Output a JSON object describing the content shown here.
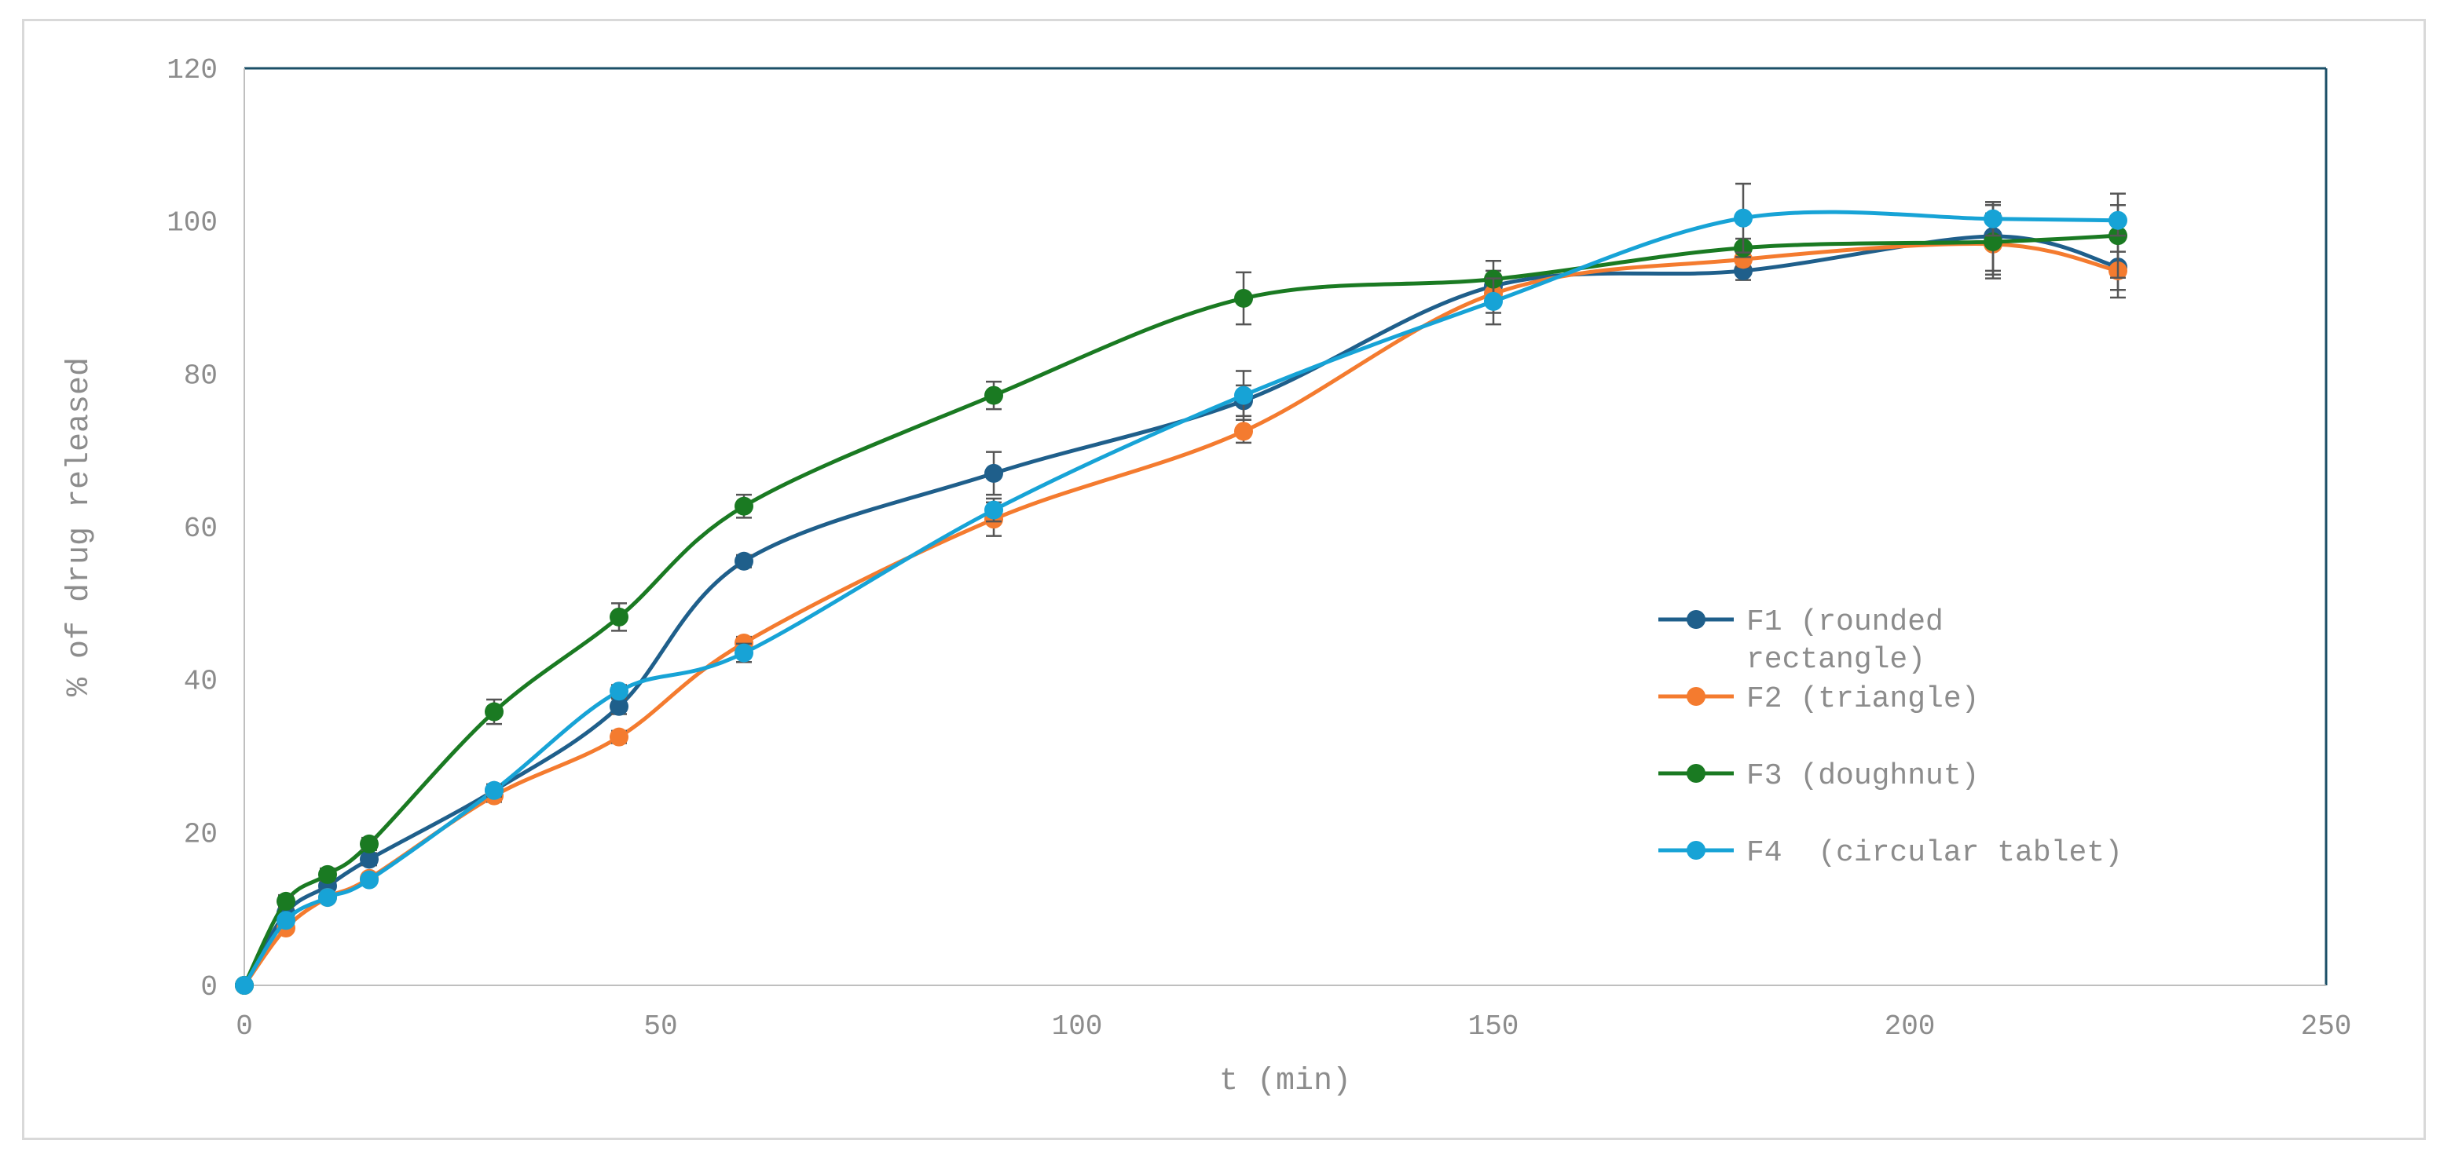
{
  "chart_data": {
    "type": "line",
    "title": "",
    "xlabel": "t (min)",
    "ylabel": "% of drug released",
    "xlim": [
      0,
      250
    ],
    "ylim": [
      0,
      120
    ],
    "xticks": [
      0,
      50,
      100,
      150,
      200,
      250
    ],
    "yticks": [
      0,
      20,
      40,
      60,
      80,
      100,
      120
    ],
    "x": [
      0,
      5,
      10,
      15,
      30,
      45,
      60,
      90,
      120,
      150,
      180,
      210,
      225
    ],
    "grid": false,
    "legend_position": "right",
    "series": [
      {
        "name": "F1 (rounded rectangle)",
        "legend_lines": [
          "F1 (rounded",
          "rectangle)"
        ],
        "color": "#1f5f8b",
        "values": [
          0,
          9.5,
          13,
          16.5,
          25.5,
          36.5,
          55.5,
          67,
          76.5,
          91.5,
          93.5,
          98,
          94
        ],
        "errors": [
          0,
          0.5,
          0.5,
          0.8,
          0.8,
          1.0,
          0.8,
          2.8,
          2.0,
          2.0,
          1.2,
          4.5,
          4.0
        ]
      },
      {
        "name": "F2 (triangle)",
        "legend_lines": [
          "F2 (triangle)"
        ],
        "color": "#f47b2f",
        "values": [
          0,
          7.5,
          11.5,
          14,
          24.8,
          32.5,
          44.8,
          61,
          72.5,
          90.5,
          95,
          97,
          93.5
        ],
        "errors": [
          0,
          0.5,
          0.5,
          0.5,
          0.8,
          0.8,
          0.8,
          2.2,
          1.5,
          2.5,
          1.0,
          4.0,
          2.5
        ]
      },
      {
        "name": "F3 (doughnut)",
        "legend_lines": [
          "F3 (doughnut)"
        ],
        "color": "#1a7a22",
        "values": [
          0,
          11,
          14.5,
          18.5,
          35.8,
          48.2,
          62.7,
          77.2,
          89.9,
          92.4,
          96.5,
          97.3,
          98.1
        ],
        "errors": [
          0,
          0.8,
          0.8,
          0.8,
          1.6,
          1.8,
          1.5,
          1.8,
          3.4,
          2.4,
          1.2,
          4.8,
          5.5
        ]
      },
      {
        "name": "F4  (circular tablet)",
        "legend_lines": [
          "F4  (circular tablet)"
        ],
        "color": "#17a3d6",
        "values": [
          0,
          8.5,
          11.5,
          13.8,
          25.5,
          38.5,
          43.5,
          62.2,
          77.2,
          89.5,
          100.4,
          100.3,
          100.1
        ],
        "errors": [
          0,
          0.5,
          0.5,
          0.5,
          0.8,
          0.8,
          1.2,
          1.5,
          3.2,
          3.0,
          4.5,
          2.2,
          2.0
        ]
      }
    ]
  }
}
